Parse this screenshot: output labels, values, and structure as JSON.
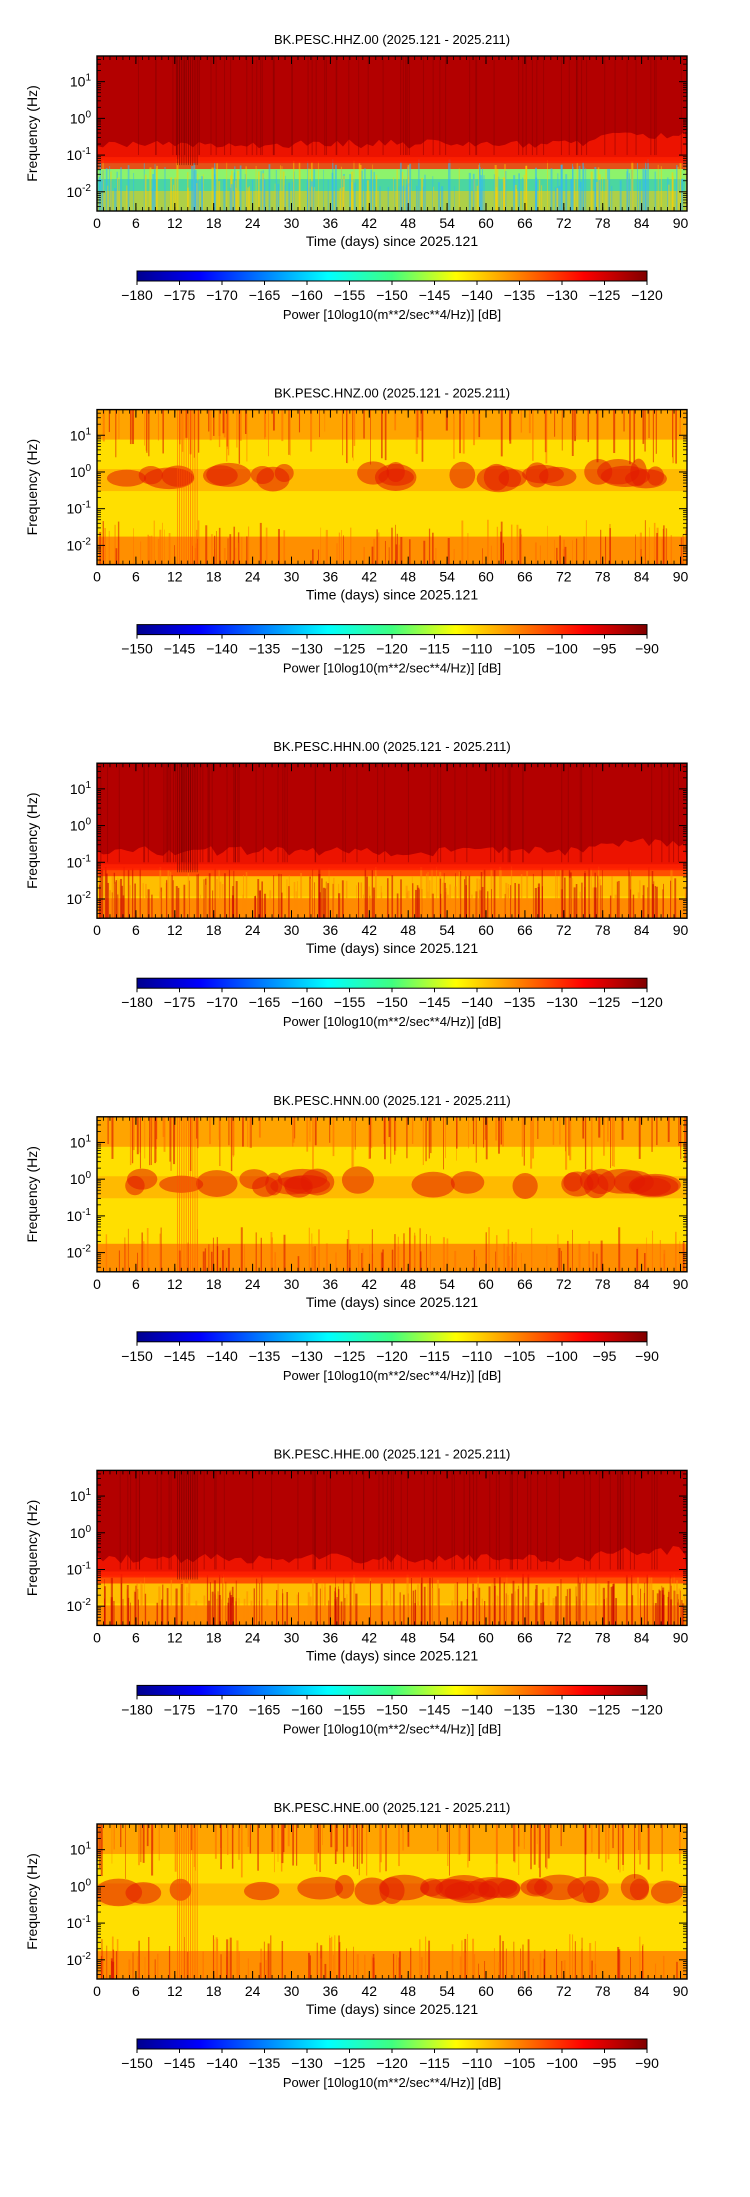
{
  "chart_data": [
    {
      "type": "heatmap",
      "title": "BK.PESC.HHZ.00 (2025.121 - 2025.211)",
      "xlabel": "Time (days) since 2025.121",
      "ylabel": "Frequency (Hz)",
      "x_ticks": [
        "0",
        "6",
        "12",
        "18",
        "24",
        "30",
        "36",
        "42",
        "48",
        "54",
        "60",
        "66",
        "72",
        "78",
        "84",
        "90"
      ],
      "xlim": [
        0,
        91
      ],
      "y_ticks": [
        "10^-2",
        "10^-1",
        "10^0",
        "10^1"
      ],
      "y_scale": "log",
      "ylim": [
        0.003,
        50
      ],
      "colorbar": {
        "label": "Power [10log10(m**2/sec**4/Hz)] [dB]",
        "range": [
          -180,
          -120
        ],
        "ticks": [
          "-180",
          "-175",
          "-170",
          "-165",
          "-160",
          "-155",
          "-150",
          "-145",
          "-140",
          "-135",
          "-130",
          "-125",
          "-120"
        ],
        "colormap": "jet"
      }
    },
    {
      "type": "heatmap",
      "title": "BK.PESC.HNZ.00 (2025.121 - 2025.211)",
      "xlabel": "Time (days) since 2025.121",
      "ylabel": "Frequency (Hz)",
      "x_ticks": [
        "0",
        "6",
        "12",
        "18",
        "24",
        "30",
        "36",
        "42",
        "48",
        "54",
        "60",
        "66",
        "72",
        "78",
        "84",
        "90"
      ],
      "xlim": [
        0,
        91
      ],
      "y_ticks": [
        "10^-2",
        "10^-1",
        "10^0",
        "10^1"
      ],
      "y_scale": "log",
      "ylim": [
        0.003,
        50
      ],
      "colorbar": {
        "label": "Power [10log10(m**2/sec**4/Hz)] [dB]",
        "range": [
          -150,
          -90
        ],
        "ticks": [
          "-150",
          "-145",
          "-140",
          "-135",
          "-130",
          "-125",
          "-120",
          "-115",
          "-110",
          "-105",
          "-100",
          "-95",
          "-90"
        ],
        "colormap": "jet"
      }
    },
    {
      "type": "heatmap",
      "title": "BK.PESC.HHN.00 (2025.121 - 2025.211)",
      "xlabel": "Time (days) since 2025.121",
      "ylabel": "Frequency (Hz)",
      "x_ticks": [
        "0",
        "6",
        "12",
        "18",
        "24",
        "30",
        "36",
        "42",
        "48",
        "54",
        "60",
        "66",
        "72",
        "78",
        "84",
        "90"
      ],
      "xlim": [
        0,
        91
      ],
      "y_ticks": [
        "10^-2",
        "10^-1",
        "10^0",
        "10^1"
      ],
      "y_scale": "log",
      "ylim": [
        0.003,
        50
      ],
      "colorbar": {
        "label": "Power [10log10(m**2/sec**4/Hz)] [dB]",
        "range": [
          -180,
          -120
        ],
        "ticks": [
          "-180",
          "-175",
          "-170",
          "-165",
          "-160",
          "-155",
          "-150",
          "-145",
          "-140",
          "-135",
          "-130",
          "-125",
          "-120"
        ],
        "colormap": "jet"
      }
    },
    {
      "type": "heatmap",
      "title": "BK.PESC.HNN.00 (2025.121 - 2025.211)",
      "xlabel": "Time (days) since 2025.121",
      "ylabel": "Frequency (Hz)",
      "x_ticks": [
        "0",
        "6",
        "12",
        "18",
        "24",
        "30",
        "36",
        "42",
        "48",
        "54",
        "60",
        "66",
        "72",
        "78",
        "84",
        "90"
      ],
      "xlim": [
        0,
        91
      ],
      "y_ticks": [
        "10^-2",
        "10^-1",
        "10^0",
        "10^1"
      ],
      "y_scale": "log",
      "ylim": [
        0.003,
        50
      ],
      "colorbar": {
        "label": "Power [10log10(m**2/sec**4/Hz)] [dB]",
        "range": [
          -150,
          -90
        ],
        "ticks": [
          "-150",
          "-145",
          "-140",
          "-135",
          "-130",
          "-125",
          "-120",
          "-115",
          "-110",
          "-105",
          "-100",
          "-95",
          "-90"
        ],
        "colormap": "jet"
      }
    },
    {
      "type": "heatmap",
      "title": "BK.PESC.HHE.00 (2025.121 - 2025.211)",
      "xlabel": "Time (days) since 2025.121",
      "ylabel": "Frequency (Hz)",
      "x_ticks": [
        "0",
        "6",
        "12",
        "18",
        "24",
        "30",
        "36",
        "42",
        "48",
        "54",
        "60",
        "66",
        "72",
        "78",
        "84",
        "90"
      ],
      "xlim": [
        0,
        91
      ],
      "y_ticks": [
        "10^-2",
        "10^-1",
        "10^0",
        "10^1"
      ],
      "y_scale": "log",
      "ylim": [
        0.003,
        50
      ],
      "colorbar": {
        "label": "Power [10log10(m**2/sec**4/Hz)] [dB]",
        "range": [
          -180,
          -120
        ],
        "ticks": [
          "-180",
          "-175",
          "-170",
          "-165",
          "-160",
          "-155",
          "-150",
          "-145",
          "-140",
          "-135",
          "-130",
          "-125",
          "-120"
        ],
        "colormap": "jet"
      }
    },
    {
      "type": "heatmap",
      "title": "BK.PESC.HNE.00 (2025.121 - 2025.211)",
      "xlabel": "Time (days) since 2025.121",
      "ylabel": "Frequency (Hz)",
      "x_ticks": [
        "0",
        "6",
        "12",
        "18",
        "24",
        "30",
        "36",
        "42",
        "48",
        "54",
        "60",
        "66",
        "72",
        "78",
        "84",
        "90"
      ],
      "xlim": [
        0,
        91
      ],
      "y_ticks": [
        "10^-2",
        "10^-1",
        "10^0",
        "10^1"
      ],
      "y_scale": "log",
      "ylim": [
        0.003,
        50
      ],
      "colorbar": {
        "label": "Power [10log10(m**2/sec**4/Hz)] [dB]",
        "range": [
          -150,
          -90
        ],
        "ticks": [
          "-150",
          "-145",
          "-140",
          "-135",
          "-130",
          "-125",
          "-120",
          "-115",
          "-110",
          "-105",
          "-100",
          "-95",
          "-90"
        ],
        "colormap": "jet"
      }
    }
  ]
}
